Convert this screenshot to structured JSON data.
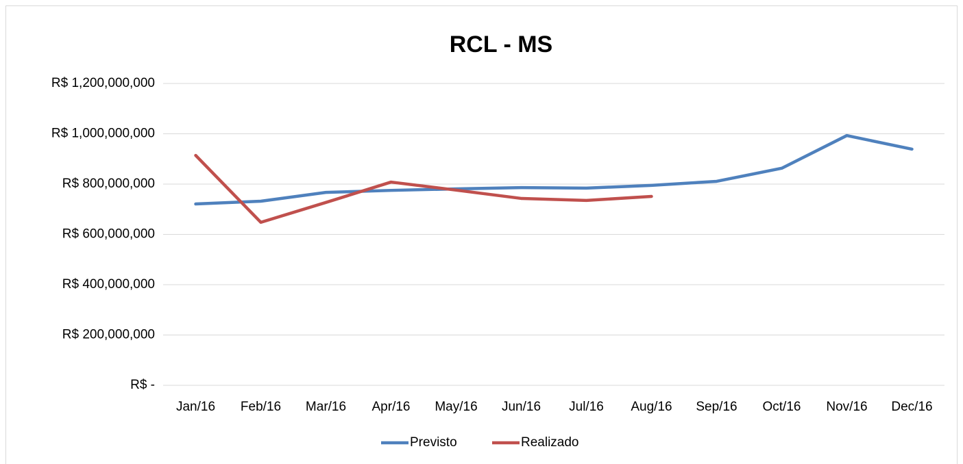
{
  "chart_data": {
    "type": "line",
    "title": "RCL - MS",
    "categories": [
      "Jan/16",
      "Feb/16",
      "Mar/16",
      "Apr/16",
      "May/16",
      "Jun/16",
      "Jul/16",
      "Aug/16",
      "Sep/16",
      "Oct/16",
      "Nov/16",
      "Dec/16"
    ],
    "series": [
      {
        "name": "Previsto",
        "color": "#4f81bd",
        "values": [
          721000000,
          732000000,
          767000000,
          775000000,
          781000000,
          786000000,
          784000000,
          795000000,
          811000000,
          863000000,
          993000000,
          939000000
        ]
      },
      {
        "name": "Realizado",
        "color": "#c0504d",
        "values": [
          914000000,
          648000000,
          727000000,
          808000000,
          776000000,
          743000000,
          735000000,
          751000000,
          null,
          null,
          null,
          null
        ]
      }
    ],
    "ylim": [
      0,
      1200000000
    ],
    "yticks": [
      {
        "value": 0,
        "label": "R$ -"
      },
      {
        "value": 200000000,
        "label": "R$ 200,000,000"
      },
      {
        "value": 400000000,
        "label": "R$ 400,000,000"
      },
      {
        "value": 600000000,
        "label": "R$ 600,000,000"
      },
      {
        "value": 800000000,
        "label": "R$ 800,000,000"
      },
      {
        "value": 1000000000,
        "label": "R$ 1,000,000,000"
      },
      {
        "value": 1200000000,
        "label": "R$ 1,200,000,000"
      }
    ],
    "grid": true,
    "legend": "bottom"
  }
}
